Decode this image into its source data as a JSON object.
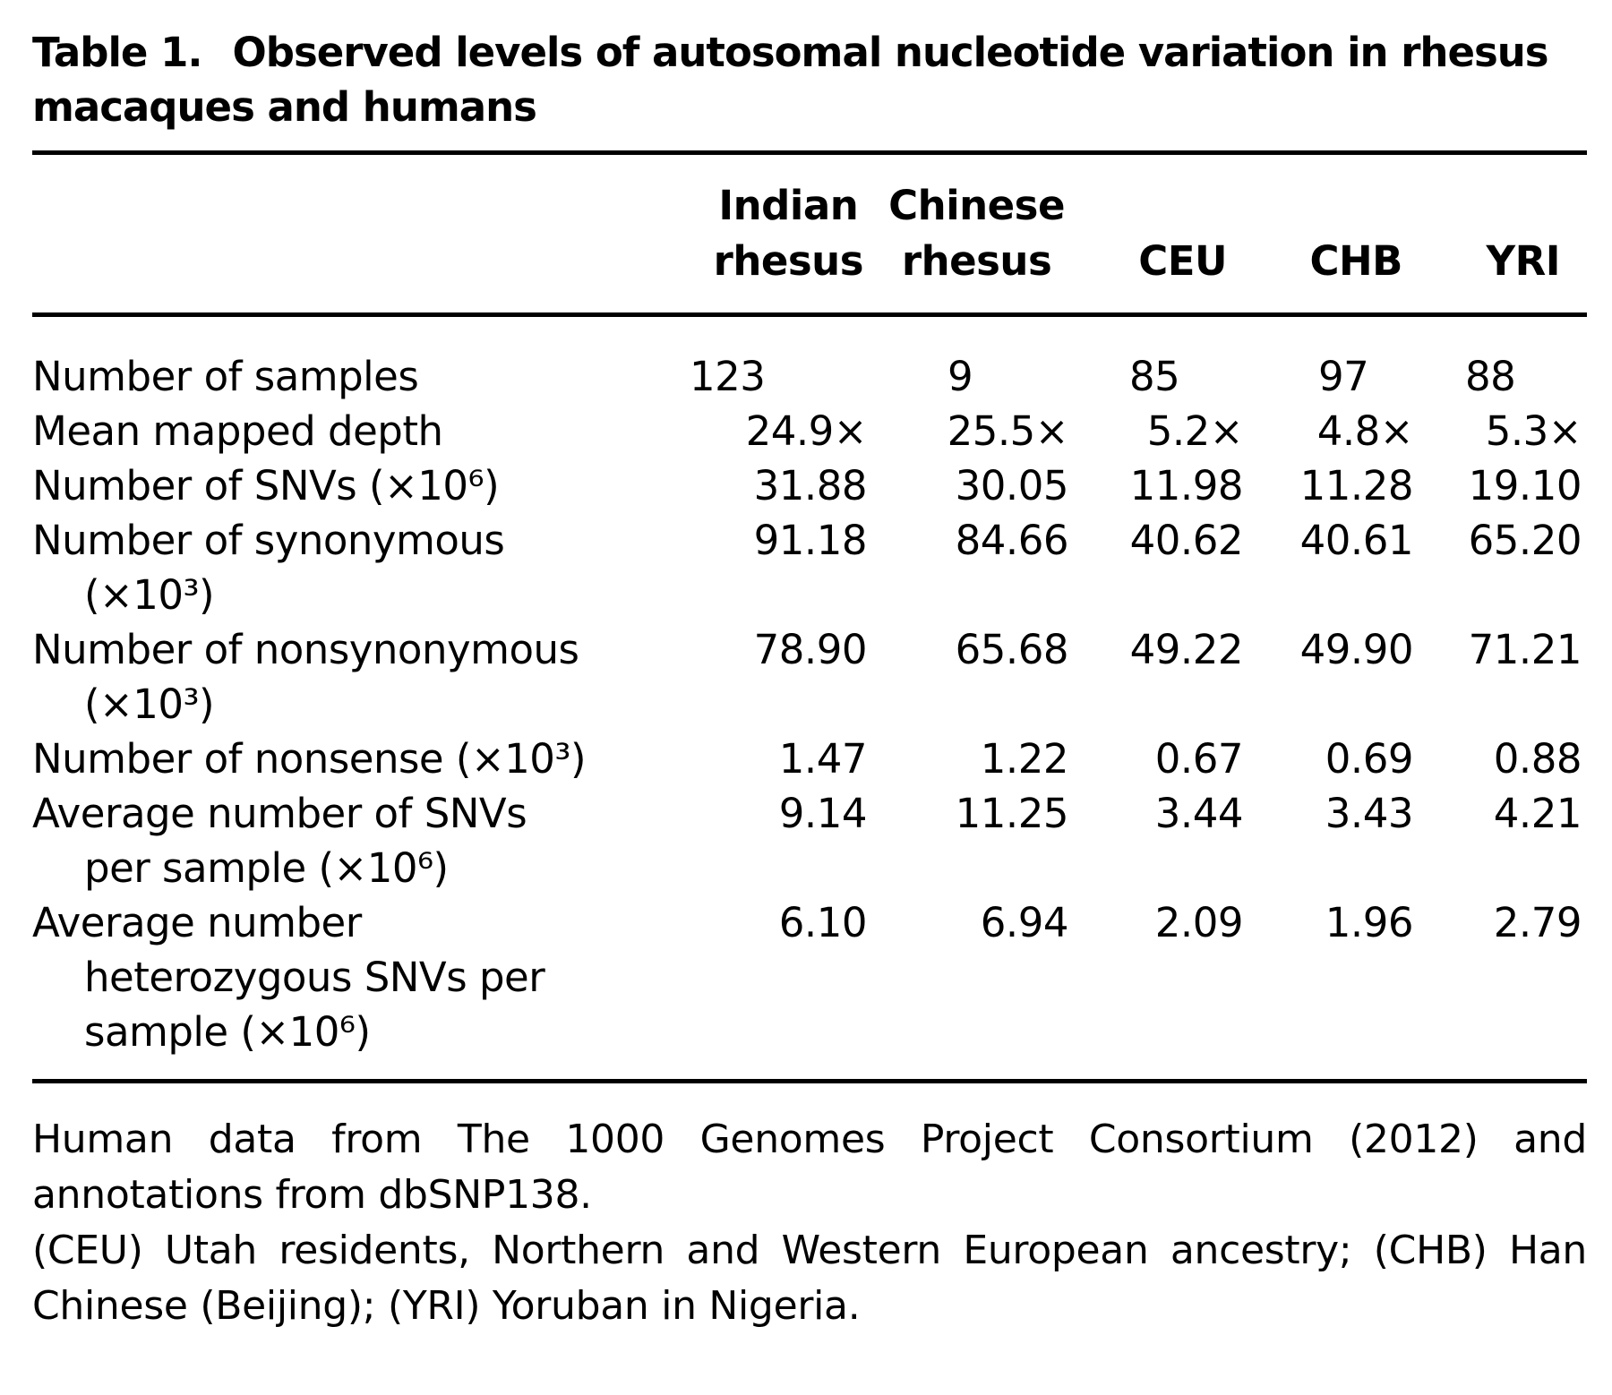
{
  "caption": {
    "label": "Table 1.",
    "title": "Observed levels of autosomal nucleotide variation in rhesus macaques and humans"
  },
  "columns": [
    {
      "line1": "Indian",
      "line2": "rhesus"
    },
    {
      "line1": "Chinese",
      "line2": "rhesus"
    },
    {
      "line1": "",
      "line2": "CEU"
    },
    {
      "line1": "",
      "line2": "CHB"
    },
    {
      "line1": "",
      "line2": "YRI"
    }
  ],
  "rows": [
    {
      "label": "Number of samples",
      "label2": "",
      "values": [
        "123",
        "9",
        "85",
        "97",
        "88"
      ]
    },
    {
      "label": "Mean mapped depth",
      "label2": "",
      "values": [
        "24.9×",
        "25.5×",
        "5.2×",
        "4.8×",
        "5.3×"
      ]
    },
    {
      "label": "Number of SNVs (×10⁶)",
      "label2": "",
      "values": [
        "31.88",
        "30.05",
        "11.98",
        "11.28",
        "19.10"
      ]
    },
    {
      "label": "Number of synonymous",
      "label2": "(×10³)",
      "values": [
        "91.18",
        "84.66",
        "40.62",
        "40.61",
        "65.20"
      ]
    },
    {
      "label": "Number of nonsynonymous",
      "label2": "(×10³)",
      "values": [
        "78.90",
        "65.68",
        "49.22",
        "49.90",
        "71.21"
      ]
    },
    {
      "label": "Number of nonsense (×10³)",
      "label2": "",
      "values": [
        "1.47",
        "1.22",
        "0.67",
        "0.69",
        "0.88"
      ]
    },
    {
      "label": "Average number of SNVs",
      "label2": "per sample (×10⁶)",
      "values": [
        "9.14",
        "11.25",
        "3.44",
        "3.43",
        "4.21"
      ]
    },
    {
      "label": "Average number",
      "label2": "heterozygous SNVs per sample (×10⁶)",
      "values": [
        "6.10",
        "6.94",
        "2.09",
        "1.96",
        "2.79"
      ]
    }
  ],
  "footnotes": [
    "Human data from The 1000 Genomes Project Consortium (2012) and annotations from dbSNP138.",
    "(CEU) Utah residents, Northern and Western European ancestry; (CHB) Han Chinese (Beijing); (YRI) Yoruban in Nigeria."
  ]
}
